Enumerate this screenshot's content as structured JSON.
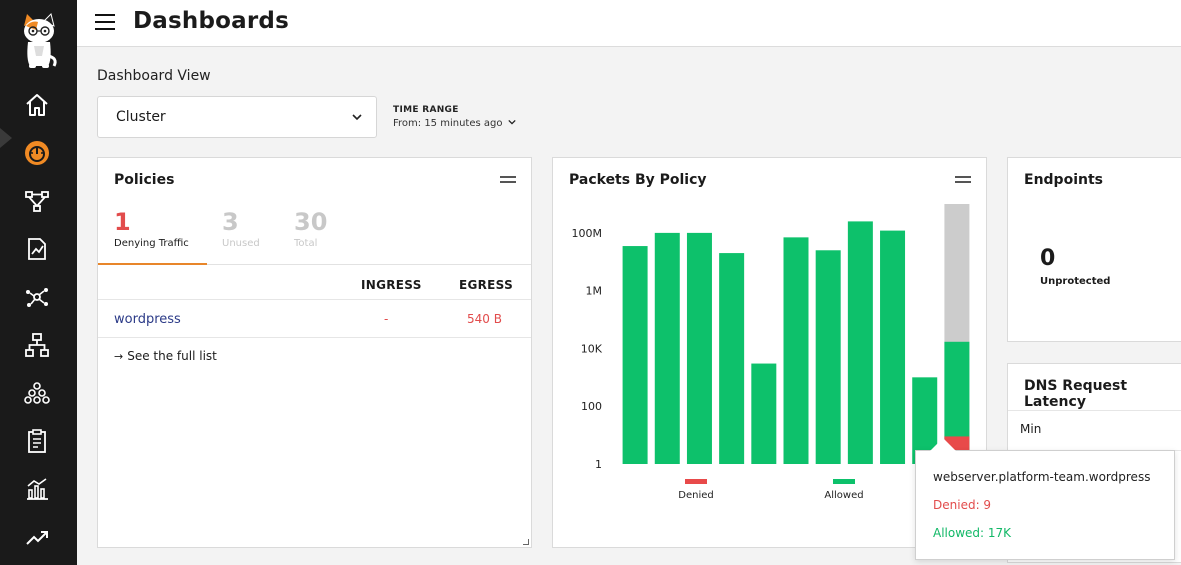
{
  "header": {
    "title": "Dashboards"
  },
  "sidebar": {
    "items": [
      {
        "icon": "home-icon"
      },
      {
        "icon": "dashboard-gauge-icon",
        "active": true
      },
      {
        "icon": "topology-icon"
      },
      {
        "icon": "report-chart-icon"
      },
      {
        "icon": "network-graph-icon"
      },
      {
        "icon": "hierarchy-icon"
      },
      {
        "icon": "cluster-icon"
      },
      {
        "icon": "clipboard-icon"
      },
      {
        "icon": "bar-chart-icon"
      },
      {
        "icon": "trending-up-icon"
      }
    ],
    "accent": "#f08a24"
  },
  "view": {
    "label": "Dashboard View",
    "selected": "Cluster",
    "time_range_label": "TIME RANGE",
    "time_range_value": "From: 15 minutes ago"
  },
  "policies": {
    "title": "Policies",
    "stats": [
      {
        "value": "1",
        "label": "Denying Traffic"
      },
      {
        "value": "3",
        "label": "Unused"
      },
      {
        "value": "30",
        "label": "Total"
      }
    ],
    "columns": [
      "INGRESS",
      "EGRESS"
    ],
    "rows": [
      {
        "name": "wordpress",
        "ingress": "-",
        "egress": "540 B"
      }
    ],
    "see_full_list": "See the full list"
  },
  "packets": {
    "title": "Packets By Policy"
  },
  "endpoints": {
    "title": "Endpoints",
    "value": "0",
    "label": "Unprotected"
  },
  "dns": {
    "title": "DNS Request Latency",
    "row_label": "Min"
  },
  "tooltip": {
    "title": "webserver.platform-team.wordpress",
    "denied": "Denied: 9",
    "allowed": "Allowed: 17K"
  },
  "chart_data": {
    "type": "bar",
    "stacked": true,
    "y_scale": "log",
    "ylim": [
      1,
      1000000000
    ],
    "yticks": [
      "100M",
      "1M",
      "10K",
      "100",
      "1"
    ],
    "ytick_values": [
      100000000,
      1000000,
      10000,
      100,
      1
    ],
    "series": [
      {
        "name": "Denied",
        "color": "#e84a4a",
        "values": [
          0,
          0,
          0,
          0,
          0,
          0,
          0,
          0,
          0,
          0,
          9
        ]
      },
      {
        "name": "Allowed",
        "color": "#0dc16b",
        "values": [
          35000000,
          100000000,
          100000000,
          20000000,
          3000,
          70000000,
          25000000,
          250000000,
          120000000,
          1000,
          17000
        ]
      }
    ],
    "highlight_index": 10,
    "highlight_color": "#cccccc",
    "legend": [
      "Denied",
      "Allowed"
    ],
    "grid": false,
    "legend_position": "bottom"
  }
}
